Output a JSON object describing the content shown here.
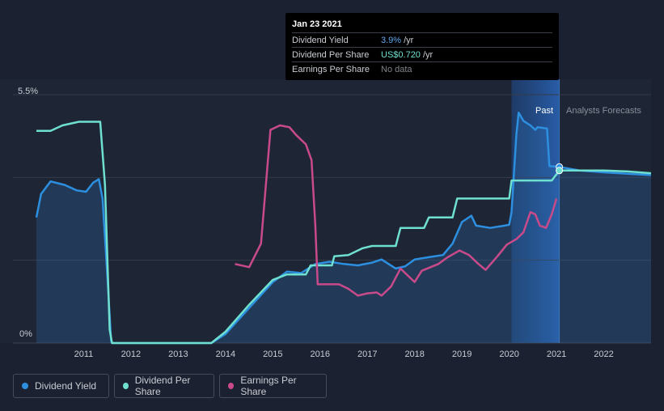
{
  "tooltip": {
    "date": "Jan 23 2021",
    "rows": [
      {
        "label": "Dividend Yield",
        "value": "3.9%",
        "unit": "/yr"
      },
      {
        "label": "Dividend Per Share",
        "value": "US$0.720",
        "unit": "/yr"
      },
      {
        "label": "Earnings Per Share",
        "value": "No data",
        "unit": ""
      }
    ]
  },
  "legend": [
    {
      "label": "Dividend Yield",
      "color": "#2d8fe0"
    },
    {
      "label": "Dividend Per Share",
      "color": "#6fe0d0"
    },
    {
      "label": "Earnings Per Share",
      "color": "#c94a8a"
    }
  ],
  "chart_data": {
    "type": "line",
    "y_top_label": "5.5%",
    "y_bottom_label": "0%",
    "ylim": [
      0,
      5.5
    ],
    "xlim": [
      2010.0,
      2023.0
    ],
    "xticks": [
      "2011",
      "2012",
      "2013",
      "2014",
      "2015",
      "2016",
      "2017",
      "2018",
      "2019",
      "2020",
      "2021",
      "2022"
    ],
    "past_label": "Past",
    "forecast_label": "Analysts Forecasts",
    "marker_x": 2021.06,
    "series": [
      {
        "name": "Dividend Yield",
        "color": "#2d8fe0",
        "area": true,
        "points": [
          [
            2010.0,
            2.78
          ],
          [
            2010.1,
            3.3
          ],
          [
            2010.3,
            3.58
          ],
          [
            2010.6,
            3.5
          ],
          [
            2010.85,
            3.38
          ],
          [
            2011.05,
            3.35
          ],
          [
            2011.2,
            3.55
          ],
          [
            2011.32,
            3.63
          ],
          [
            2011.4,
            3.2
          ],
          [
            2011.5,
            1.5
          ],
          [
            2011.58,
            0.05
          ],
          [
            2011.6,
            0.0
          ],
          [
            2013.7,
            0.0
          ],
          [
            2014.0,
            0.2
          ],
          [
            2014.5,
            0.78
          ],
          [
            2015.0,
            1.35
          ],
          [
            2015.3,
            1.58
          ],
          [
            2015.6,
            1.55
          ],
          [
            2015.9,
            1.75
          ],
          [
            2016.2,
            1.8
          ],
          [
            2016.5,
            1.75
          ],
          [
            2016.8,
            1.72
          ],
          [
            2017.1,
            1.78
          ],
          [
            2017.3,
            1.85
          ],
          [
            2017.6,
            1.65
          ],
          [
            2017.8,
            1.7
          ],
          [
            2018.0,
            1.85
          ],
          [
            2018.3,
            1.9
          ],
          [
            2018.6,
            1.95
          ],
          [
            2018.8,
            2.2
          ],
          [
            2019.0,
            2.68
          ],
          [
            2019.2,
            2.82
          ],
          [
            2019.3,
            2.6
          ],
          [
            2019.6,
            2.55
          ],
          [
            2019.9,
            2.6
          ],
          [
            2020.0,
            2.62
          ],
          [
            2020.05,
            2.9
          ],
          [
            2020.15,
            4.6
          ],
          [
            2020.2,
            5.1
          ],
          [
            2020.3,
            4.92
          ],
          [
            2020.45,
            4.82
          ],
          [
            2020.55,
            4.72
          ],
          [
            2020.6,
            4.78
          ],
          [
            2020.8,
            4.75
          ],
          [
            2020.85,
            3.92
          ],
          [
            2021.06,
            3.9
          ],
          [
            2021.5,
            3.82
          ],
          [
            2022.0,
            3.78
          ],
          [
            2022.5,
            3.75
          ],
          [
            2023.0,
            3.72
          ]
        ]
      },
      {
        "name": "Dividend Per Share",
        "color": "#6fe0d0",
        "area": false,
        "points": [
          [
            2010.0,
            4.7
          ],
          [
            2010.3,
            4.7
          ],
          [
            2010.55,
            4.82
          ],
          [
            2010.9,
            4.9
          ],
          [
            2011.35,
            4.9
          ],
          [
            2011.45,
            3.5
          ],
          [
            2011.55,
            0.3
          ],
          [
            2011.6,
            0.0
          ],
          [
            2013.7,
            0.0
          ],
          [
            2014.0,
            0.25
          ],
          [
            2014.5,
            0.85
          ],
          [
            2015.0,
            1.4
          ],
          [
            2015.3,
            1.52
          ],
          [
            2015.7,
            1.52
          ],
          [
            2015.8,
            1.72
          ],
          [
            2016.25,
            1.72
          ],
          [
            2016.3,
            1.92
          ],
          [
            2016.6,
            1.95
          ],
          [
            2016.9,
            2.1
          ],
          [
            2017.1,
            2.15
          ],
          [
            2017.6,
            2.15
          ],
          [
            2017.7,
            2.55
          ],
          [
            2018.2,
            2.55
          ],
          [
            2018.3,
            2.78
          ],
          [
            2018.8,
            2.78
          ],
          [
            2018.9,
            3.2
          ],
          [
            2020.0,
            3.2
          ],
          [
            2020.05,
            3.6
          ],
          [
            2020.9,
            3.6
          ],
          [
            2021.06,
            3.82
          ],
          [
            2021.5,
            3.82
          ],
          [
            2022.0,
            3.82
          ],
          [
            2022.5,
            3.8
          ],
          [
            2023.0,
            3.76
          ]
        ]
      },
      {
        "name": "Earnings Per Share",
        "color": "#c94a8a",
        "area": false,
        "points": [
          [
            2014.2,
            1.75
          ],
          [
            2014.5,
            1.68
          ],
          [
            2014.75,
            2.2
          ],
          [
            2014.95,
            4.72
          ],
          [
            2015.15,
            4.82
          ],
          [
            2015.35,
            4.78
          ],
          [
            2015.5,
            4.6
          ],
          [
            2015.7,
            4.4
          ],
          [
            2015.82,
            4.05
          ],
          [
            2015.9,
            2.6
          ],
          [
            2015.95,
            1.3
          ],
          [
            2016.15,
            1.3
          ],
          [
            2016.4,
            1.3
          ],
          [
            2016.6,
            1.2
          ],
          [
            2016.8,
            1.05
          ],
          [
            2017.0,
            1.1
          ],
          [
            2017.2,
            1.12
          ],
          [
            2017.3,
            1.05
          ],
          [
            2017.5,
            1.25
          ],
          [
            2017.7,
            1.65
          ],
          [
            2017.85,
            1.5
          ],
          [
            2018.0,
            1.35
          ],
          [
            2018.15,
            1.6
          ],
          [
            2018.5,
            1.75
          ],
          [
            2018.7,
            1.9
          ],
          [
            2018.95,
            2.05
          ],
          [
            2019.15,
            1.95
          ],
          [
            2019.35,
            1.75
          ],
          [
            2019.5,
            1.62
          ],
          [
            2019.75,
            1.92
          ],
          [
            2019.95,
            2.18
          ],
          [
            2020.15,
            2.3
          ],
          [
            2020.3,
            2.45
          ],
          [
            2020.45,
            2.9
          ],
          [
            2020.55,
            2.85
          ],
          [
            2020.65,
            2.6
          ],
          [
            2020.78,
            2.55
          ],
          [
            2020.9,
            2.85
          ],
          [
            2021.0,
            3.2
          ]
        ]
      }
    ]
  }
}
